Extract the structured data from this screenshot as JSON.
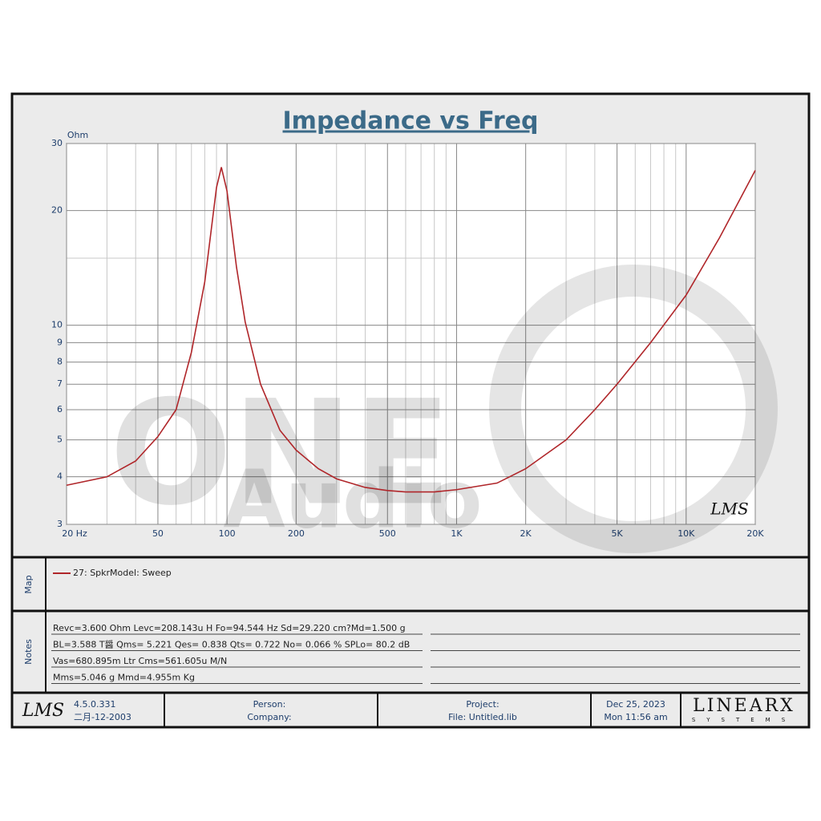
{
  "chart_data": {
    "type": "line",
    "title": "Impedance vs Freq",
    "y_label": "Ohm",
    "x": [
      20,
      30,
      40,
      50,
      60,
      70,
      80,
      90,
      94.5,
      100,
      110,
      120,
      140,
      170,
      200,
      250,
      300,
      400,
      500,
      600,
      800,
      1000,
      1500,
      2000,
      3000,
      4000,
      5000,
      7000,
      10000,
      14000,
      20000
    ],
    "series": [
      {
        "name": "27: SpkrModel: Sweep",
        "color": "#b0262a",
        "values": [
          3.8,
          4.0,
          4.4,
          5.1,
          6.0,
          8.5,
          13,
          23,
          26,
          22.5,
          14.2,
          10.2,
          7.0,
          5.3,
          4.7,
          4.2,
          3.95,
          3.75,
          3.68,
          3.65,
          3.65,
          3.7,
          3.85,
          4.2,
          5.0,
          6.0,
          7.0,
          9.0,
          12,
          17,
          25.5
        ]
      }
    ],
    "xlim": [
      20,
      20000
    ],
    "ylim": [
      3,
      30
    ],
    "log_x": true,
    "log_y": true,
    "grid": true,
    "xticks": [
      {
        "value": 20,
        "label": "20  Hz"
      },
      50,
      100,
      200,
      500,
      {
        "value": 1000,
        "label": "1K"
      },
      {
        "value": 2000,
        "label": "2K"
      },
      {
        "value": 5000,
        "label": "5K"
      },
      {
        "value": 10000,
        "label": "10K"
      },
      {
        "value": 20000,
        "label": "20K"
      }
    ],
    "x_minor_ticks": [
      30,
      40,
      60,
      70,
      80,
      90,
      300,
      400,
      600,
      700,
      800,
      900,
      3000,
      4000,
      6000,
      7000,
      8000,
      9000
    ],
    "yticks": [
      3,
      4,
      5,
      6,
      7,
      8,
      9,
      10,
      20,
      30
    ],
    "y_minor_ticks": [
      15
    ]
  },
  "watermark": {
    "line1": "ONE",
    "line2": "Audio"
  },
  "plot_logo": "LMS",
  "map": {
    "label": "Map"
  },
  "notes": {
    "label": "Notes",
    "lines": [
      "Revc=3.600 Ohm  Levc=208.143u H  Fo=94.544 Hz  Sd=29.220 cm?Md=1.500 g",
      "BL=3.588 T醤  Qms= 5.221  Qes= 0.838  Qts= 0.722  No= 0.066 %  SPLo= 80.2 dB",
      "Vas=680.895m Ltr  Cms=561.605u M/N",
      "Mms=5.046 g  Mmd=4.955m Kg"
    ]
  },
  "footer": {
    "logo": "LMS",
    "version": "4.5.0.331",
    "build_date": "二月-12-2003",
    "person": "Person:",
    "company": "Company:",
    "project": "Project:",
    "file": "File: Untitled.lib",
    "date": "Dec 25, 2023",
    "time": "Mon 11:56 am",
    "brand": "LINEARX",
    "brand_sub": "SYSTEMS"
  }
}
